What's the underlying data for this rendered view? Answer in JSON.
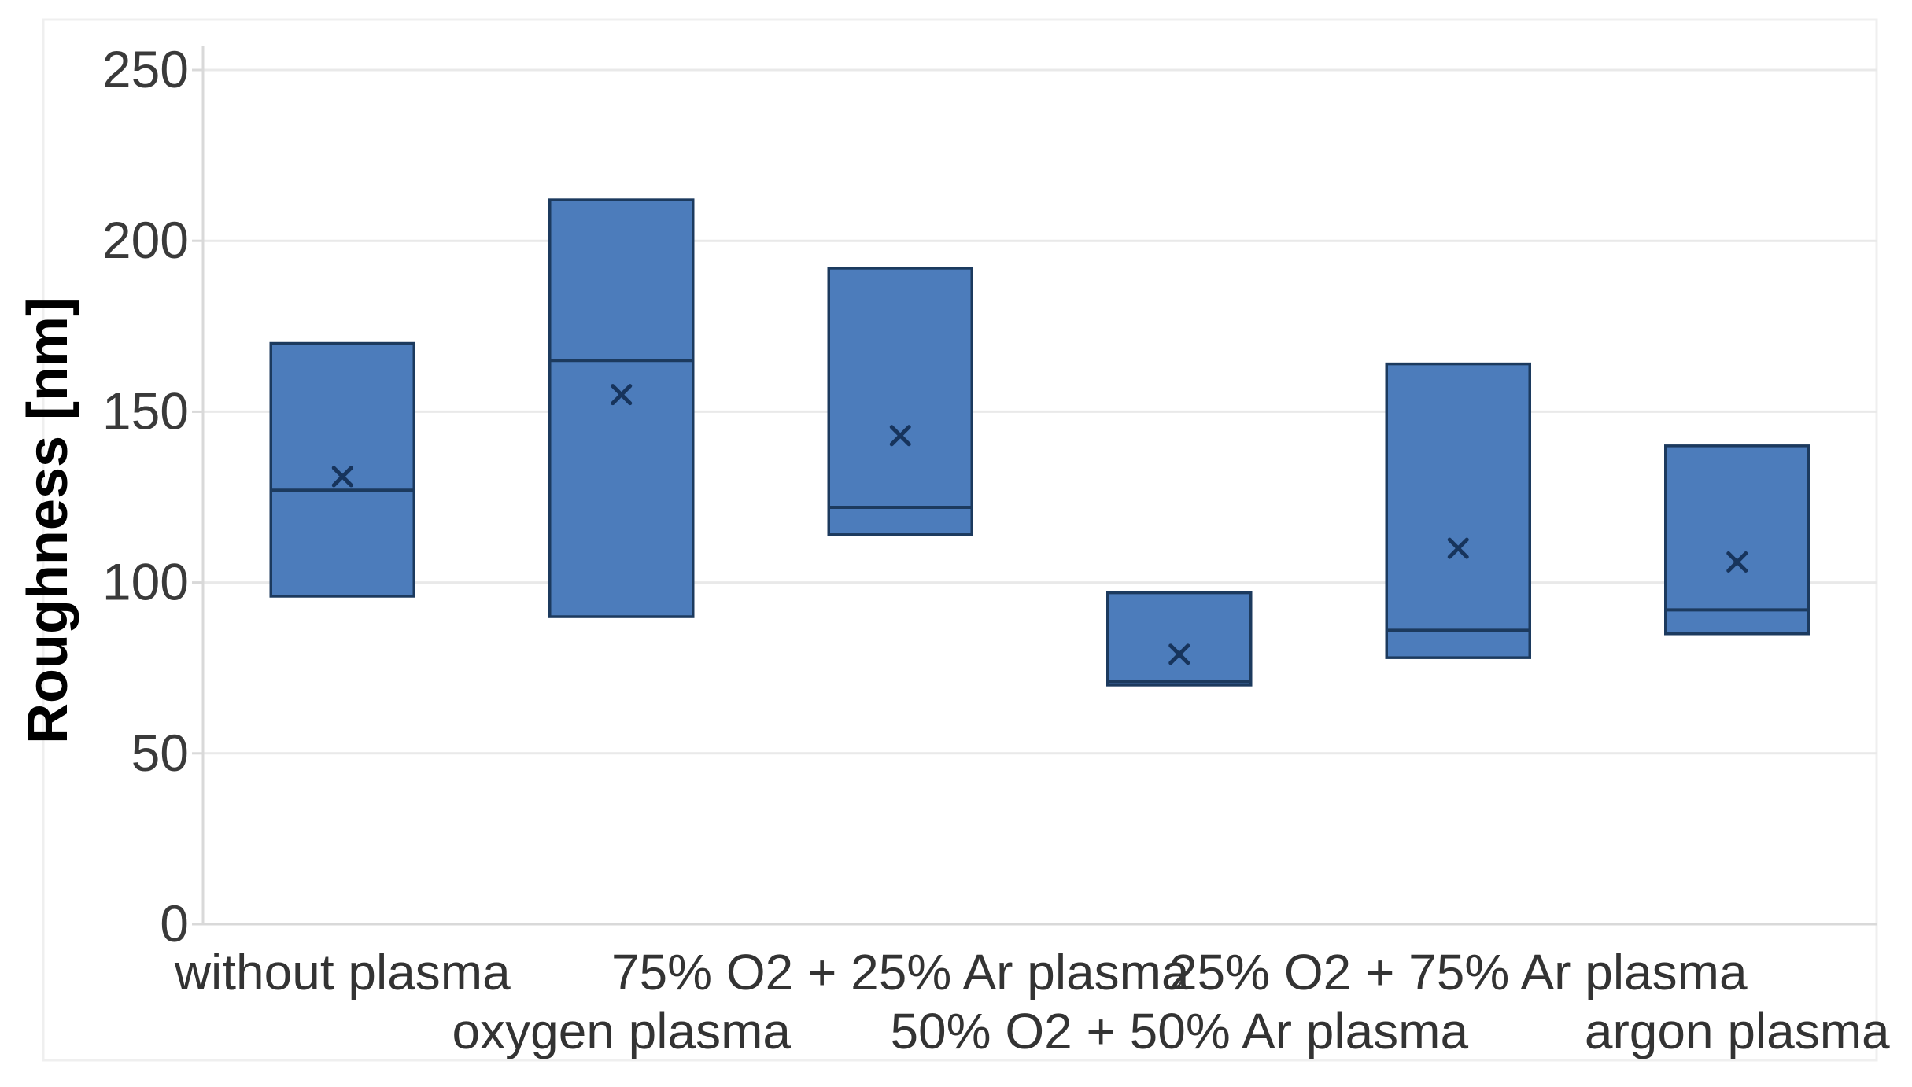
{
  "chart_data": {
    "type": "box",
    "title": "",
    "xlabel": "",
    "ylabel": "Roughness [nm]",
    "ylim": [
      0,
      250
    ],
    "ytick_step": 50,
    "yticks": [
      0,
      50,
      100,
      150,
      200,
      250
    ],
    "grid": "horizontal",
    "legend": "none",
    "categories": [
      "without plasma",
      "oxygen plasma",
      "75% O2 + 25% Ar plasma",
      "50% O2 + 50% Ar plasma",
      "25% O2 + 75% Ar plasma",
      "argon plasma"
    ],
    "boxes": [
      {
        "category": "without plasma",
        "q1": 96,
        "median": 127,
        "q3": 170,
        "mean": 131
      },
      {
        "category": "oxygen plasma",
        "q1": 90,
        "median": 165,
        "q3": 212,
        "mean": 155
      },
      {
        "category": "75% O2 + 25% Ar plasma",
        "q1": 114,
        "median": 122,
        "q3": 192,
        "mean": 143
      },
      {
        "category": "50% O2 + 50% Ar plasma",
        "q1": 70,
        "median": 71,
        "q3": 97,
        "mean": 79
      },
      {
        "category": "25% O2 + 75% Ar plasma",
        "q1": 78,
        "median": 86,
        "q3": 164,
        "mean": 110
      },
      {
        "category": "argon plasma",
        "q1": 85,
        "median": 92,
        "q3": 140,
        "mean": 106
      }
    ]
  },
  "style": {
    "box_fill": "#4C7CBB",
    "box_border": "#1C3A5E",
    "median_color": "#1C3A5E",
    "mean_marker_color": "#17345C",
    "gridline_color": "#E9E9E9",
    "axis_line_color": "#D9D9D9",
    "frame_color": "#EFEFEF",
    "tick_label_color": "#3A3A3A",
    "category_label_color": "#333333",
    "axis_title_color": "#000000",
    "background": "#FFFFFF"
  }
}
